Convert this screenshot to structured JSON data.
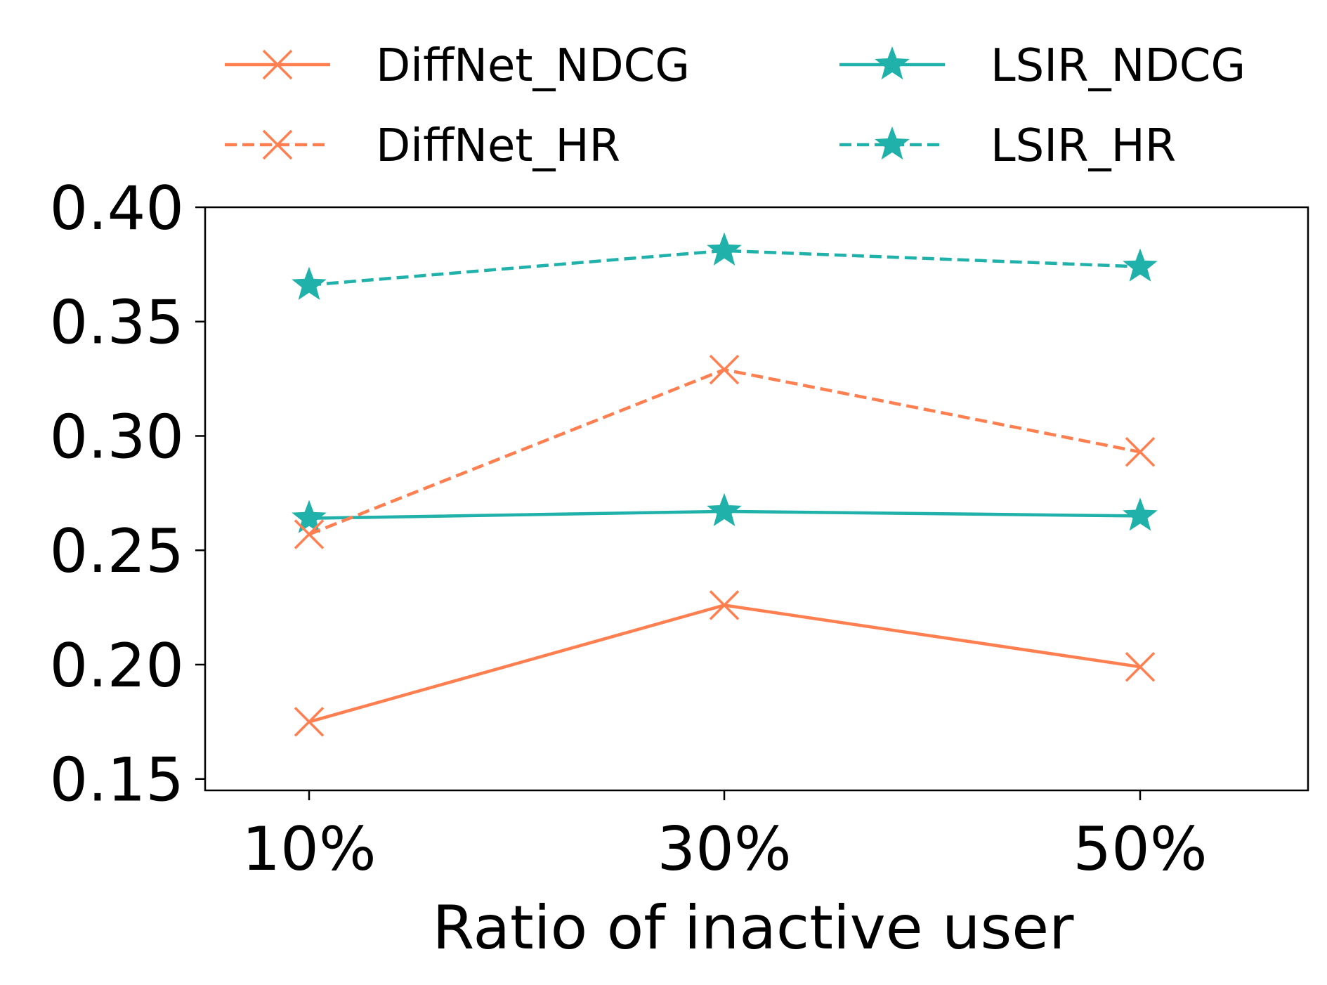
{
  "chart_data": {
    "type": "line",
    "title": "",
    "xlabel": "Ratio of inactive user",
    "ylabel": "",
    "categories": [
      "10%",
      "30%",
      "50%"
    ],
    "ylim": [
      0.145,
      0.4
    ],
    "yticks": [
      "0.15",
      "0.20",
      "0.25",
      "0.30",
      "0.35",
      "0.40"
    ],
    "grid": false,
    "legend_position": "top",
    "series": [
      {
        "name": "DiffNet_NDCG",
        "values": [
          0.175,
          0.226,
          0.199
        ],
        "color": "#ff7f50",
        "dash": "solid",
        "marker": "x"
      },
      {
        "name": "LSIR_NDCG",
        "values": [
          0.264,
          0.267,
          0.265
        ],
        "color": "#20b2aa",
        "dash": "solid",
        "marker": "star"
      },
      {
        "name": "DiffNet_HR",
        "values": [
          0.257,
          0.329,
          0.293
        ],
        "color": "#ff7f50",
        "dash": "dashed",
        "marker": "x"
      },
      {
        "name": "LSIR_HR",
        "values": [
          0.366,
          0.381,
          0.374
        ],
        "color": "#20b2aa",
        "dash": "dashed",
        "marker": "star"
      }
    ]
  }
}
